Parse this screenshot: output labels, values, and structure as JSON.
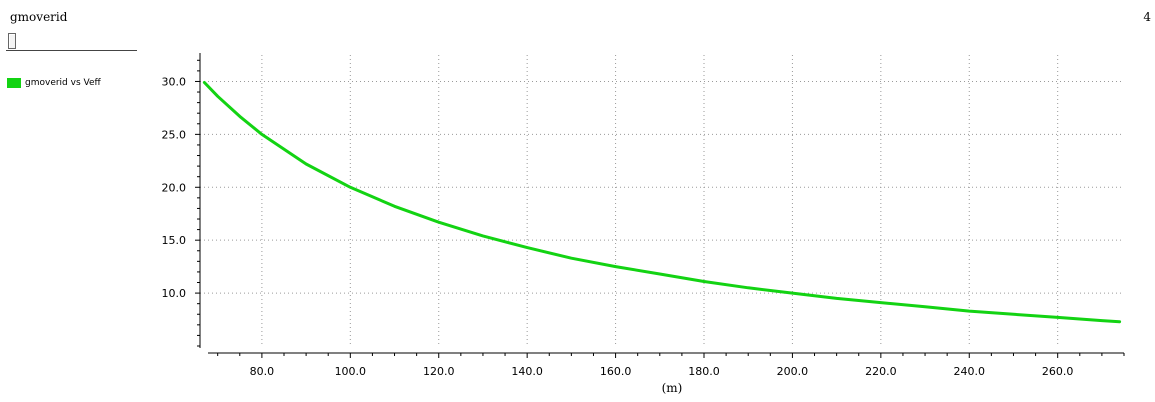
{
  "panel": {
    "title": "gmoverid",
    "input_value": ""
  },
  "top_right_value": "4",
  "legend": {
    "items": [
      {
        "label": "gmoverid vs Veff",
        "color": "#13d313"
      }
    ]
  },
  "chart_data": {
    "type": "line",
    "title": "",
    "xlabel": "(m)",
    "ylabel": "",
    "xlim": [
      66,
      275
    ],
    "ylim": [
      5,
      32.5
    ],
    "grid": true,
    "legend_position": "left",
    "x_ticks": [
      80,
      100,
      120,
      140,
      160,
      180,
      200,
      220,
      240,
      260
    ],
    "x_tick_labels": [
      "80.0",
      "100.0",
      "120.0",
      "140.0",
      "160.0",
      "180.0",
      "200.0",
      "220.0",
      "240.0",
      "260.0"
    ],
    "y_ticks": [
      10,
      15,
      20,
      25,
      30
    ],
    "y_tick_labels": [
      "10.0",
      "15.0",
      "20.0",
      "25.0",
      "30.0"
    ],
    "series": [
      {
        "name": "gmoverid vs Veff",
        "color": "#13d313",
        "x": [
          67,
          70,
          75,
          80,
          90,
          100,
          110,
          120,
          130,
          140,
          150,
          160,
          170,
          180,
          190,
          200,
          210,
          220,
          230,
          240,
          250,
          260,
          270,
          274
        ],
        "y": [
          29.9,
          28.6,
          26.7,
          25.0,
          22.2,
          20.0,
          18.2,
          16.7,
          15.4,
          14.3,
          13.3,
          12.5,
          11.8,
          11.1,
          10.5,
          10.0,
          9.5,
          9.1,
          8.7,
          8.3,
          8.0,
          7.7,
          7.4,
          7.3
        ]
      }
    ]
  }
}
